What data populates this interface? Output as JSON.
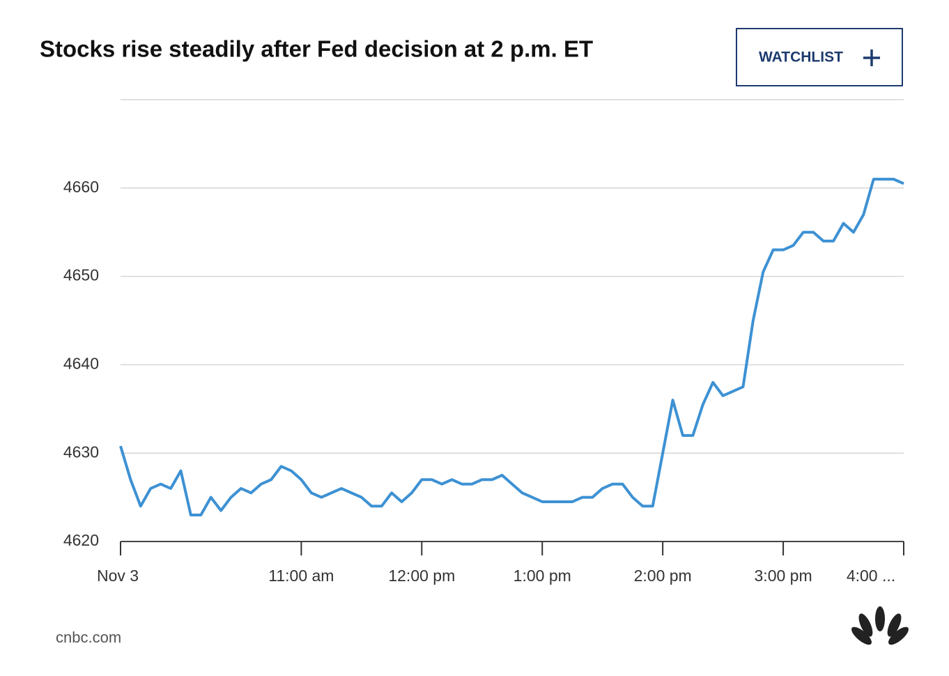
{
  "chart_data": {
    "type": "line",
    "title": "Stocks rise steadily after Fed decision at 2 p.m. ET",
    "button": "WATCHLIST",
    "source": "cnbc.com",
    "series": [
      {
        "color": "#3d91d3",
        "values": [
          4630.8,
          4627,
          4624,
          4626,
          4626.5,
          4626,
          4628,
          4623,
          4623,
          4625,
          4623.5,
          4625,
          4626,
          4625.5,
          4626.5,
          4627,
          4628.5,
          4628,
          4627,
          4625.5,
          4625,
          4625.5,
          4626,
          4625.5,
          4625,
          4624,
          4624,
          4625.5,
          4624.5,
          4625.5,
          4627,
          4627,
          4626.5,
          4627,
          4626.5,
          4626.5,
          4627,
          4627,
          4627.5,
          4626.5,
          4625.5,
          4625,
          4624.5,
          4624.5,
          4624.5,
          4624.5,
          4625,
          4625,
          4626,
          4626.5,
          4626.5,
          4625,
          4624,
          4624,
          4630,
          4636,
          4632,
          4632,
          4635.5,
          4638,
          4636.5,
          4637,
          4637.5,
          4645,
          4650.5,
          4653,
          4653,
          4653.5,
          4655,
          4655,
          4654,
          4654,
          4656,
          4655,
          4657,
          4661,
          4661,
          4661,
          4660.5
        ]
      }
    ],
    "xlim": [
      0,
      78
    ],
    "xticks": [
      {
        "value": 0,
        "label": "Nov 3"
      },
      {
        "value": 18,
        "label": "11:00 am"
      },
      {
        "value": 30,
        "label": "12:00 pm"
      },
      {
        "value": 42,
        "label": "1:00 pm"
      },
      {
        "value": 54,
        "label": "2:00 pm"
      },
      {
        "value": 66,
        "label": "3:00 pm"
      },
      {
        "value": 78,
        "label": "4:00 ..."
      }
    ],
    "ylim": [
      4620,
      4670
    ],
    "yticks": [
      4620,
      4630,
      4640,
      4650,
      4660
    ],
    "grid": true
  }
}
